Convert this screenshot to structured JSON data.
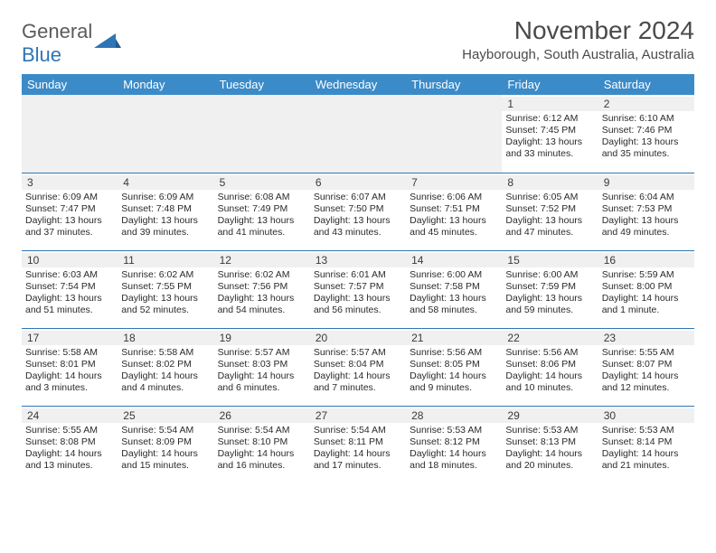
{
  "logo": {
    "word1": "General",
    "word2": "Blue"
  },
  "title": "November 2024",
  "location": "Hayborough, South Australia, Australia",
  "day_names": [
    "Sunday",
    "Monday",
    "Tuesday",
    "Wednesday",
    "Thursday",
    "Friday",
    "Saturday"
  ],
  "colors": {
    "header_bg": "#3b8bc8",
    "header_text": "#ffffff",
    "divider": "#2e75b6",
    "daynum_bg": "#f0f0f0",
    "text": "#2a2a2a",
    "logo_gray": "#5b5b5b",
    "logo_blue": "#2e75b6"
  },
  "weeks": [
    [
      {
        "blank": true
      },
      {
        "blank": true
      },
      {
        "blank": true
      },
      {
        "blank": true
      },
      {
        "blank": true
      },
      {
        "day": "1",
        "sunrise": "Sunrise: 6:12 AM",
        "sunset": "Sunset: 7:45 PM",
        "daylight": "Daylight: 13 hours and 33 minutes."
      },
      {
        "day": "2",
        "sunrise": "Sunrise: 6:10 AM",
        "sunset": "Sunset: 7:46 PM",
        "daylight": "Daylight: 13 hours and 35 minutes."
      }
    ],
    [
      {
        "day": "3",
        "sunrise": "Sunrise: 6:09 AM",
        "sunset": "Sunset: 7:47 PM",
        "daylight": "Daylight: 13 hours and 37 minutes."
      },
      {
        "day": "4",
        "sunrise": "Sunrise: 6:09 AM",
        "sunset": "Sunset: 7:48 PM",
        "daylight": "Daylight: 13 hours and 39 minutes."
      },
      {
        "day": "5",
        "sunrise": "Sunrise: 6:08 AM",
        "sunset": "Sunset: 7:49 PM",
        "daylight": "Daylight: 13 hours and 41 minutes."
      },
      {
        "day": "6",
        "sunrise": "Sunrise: 6:07 AM",
        "sunset": "Sunset: 7:50 PM",
        "daylight": "Daylight: 13 hours and 43 minutes."
      },
      {
        "day": "7",
        "sunrise": "Sunrise: 6:06 AM",
        "sunset": "Sunset: 7:51 PM",
        "daylight": "Daylight: 13 hours and 45 minutes."
      },
      {
        "day": "8",
        "sunrise": "Sunrise: 6:05 AM",
        "sunset": "Sunset: 7:52 PM",
        "daylight": "Daylight: 13 hours and 47 minutes."
      },
      {
        "day": "9",
        "sunrise": "Sunrise: 6:04 AM",
        "sunset": "Sunset: 7:53 PM",
        "daylight": "Daylight: 13 hours and 49 minutes."
      }
    ],
    [
      {
        "day": "10",
        "sunrise": "Sunrise: 6:03 AM",
        "sunset": "Sunset: 7:54 PM",
        "daylight": "Daylight: 13 hours and 51 minutes."
      },
      {
        "day": "11",
        "sunrise": "Sunrise: 6:02 AM",
        "sunset": "Sunset: 7:55 PM",
        "daylight": "Daylight: 13 hours and 52 minutes."
      },
      {
        "day": "12",
        "sunrise": "Sunrise: 6:02 AM",
        "sunset": "Sunset: 7:56 PM",
        "daylight": "Daylight: 13 hours and 54 minutes."
      },
      {
        "day": "13",
        "sunrise": "Sunrise: 6:01 AM",
        "sunset": "Sunset: 7:57 PM",
        "daylight": "Daylight: 13 hours and 56 minutes."
      },
      {
        "day": "14",
        "sunrise": "Sunrise: 6:00 AM",
        "sunset": "Sunset: 7:58 PM",
        "daylight": "Daylight: 13 hours and 58 minutes."
      },
      {
        "day": "15",
        "sunrise": "Sunrise: 6:00 AM",
        "sunset": "Sunset: 7:59 PM",
        "daylight": "Daylight: 13 hours and 59 minutes."
      },
      {
        "day": "16",
        "sunrise": "Sunrise: 5:59 AM",
        "sunset": "Sunset: 8:00 PM",
        "daylight": "Daylight: 14 hours and 1 minute."
      }
    ],
    [
      {
        "day": "17",
        "sunrise": "Sunrise: 5:58 AM",
        "sunset": "Sunset: 8:01 PM",
        "daylight": "Daylight: 14 hours and 3 minutes."
      },
      {
        "day": "18",
        "sunrise": "Sunrise: 5:58 AM",
        "sunset": "Sunset: 8:02 PM",
        "daylight": "Daylight: 14 hours and 4 minutes."
      },
      {
        "day": "19",
        "sunrise": "Sunrise: 5:57 AM",
        "sunset": "Sunset: 8:03 PM",
        "daylight": "Daylight: 14 hours and 6 minutes."
      },
      {
        "day": "20",
        "sunrise": "Sunrise: 5:57 AM",
        "sunset": "Sunset: 8:04 PM",
        "daylight": "Daylight: 14 hours and 7 minutes."
      },
      {
        "day": "21",
        "sunrise": "Sunrise: 5:56 AM",
        "sunset": "Sunset: 8:05 PM",
        "daylight": "Daylight: 14 hours and 9 minutes."
      },
      {
        "day": "22",
        "sunrise": "Sunrise: 5:56 AM",
        "sunset": "Sunset: 8:06 PM",
        "daylight": "Daylight: 14 hours and 10 minutes."
      },
      {
        "day": "23",
        "sunrise": "Sunrise: 5:55 AM",
        "sunset": "Sunset: 8:07 PM",
        "daylight": "Daylight: 14 hours and 12 minutes."
      }
    ],
    [
      {
        "day": "24",
        "sunrise": "Sunrise: 5:55 AM",
        "sunset": "Sunset: 8:08 PM",
        "daylight": "Daylight: 14 hours and 13 minutes."
      },
      {
        "day": "25",
        "sunrise": "Sunrise: 5:54 AM",
        "sunset": "Sunset: 8:09 PM",
        "daylight": "Daylight: 14 hours and 15 minutes."
      },
      {
        "day": "26",
        "sunrise": "Sunrise: 5:54 AM",
        "sunset": "Sunset: 8:10 PM",
        "daylight": "Daylight: 14 hours and 16 minutes."
      },
      {
        "day": "27",
        "sunrise": "Sunrise: 5:54 AM",
        "sunset": "Sunset: 8:11 PM",
        "daylight": "Daylight: 14 hours and 17 minutes."
      },
      {
        "day": "28",
        "sunrise": "Sunrise: 5:53 AM",
        "sunset": "Sunset: 8:12 PM",
        "daylight": "Daylight: 14 hours and 18 minutes."
      },
      {
        "day": "29",
        "sunrise": "Sunrise: 5:53 AM",
        "sunset": "Sunset: 8:13 PM",
        "daylight": "Daylight: 14 hours and 20 minutes."
      },
      {
        "day": "30",
        "sunrise": "Sunrise: 5:53 AM",
        "sunset": "Sunset: 8:14 PM",
        "daylight": "Daylight: 14 hours and 21 minutes."
      }
    ]
  ]
}
